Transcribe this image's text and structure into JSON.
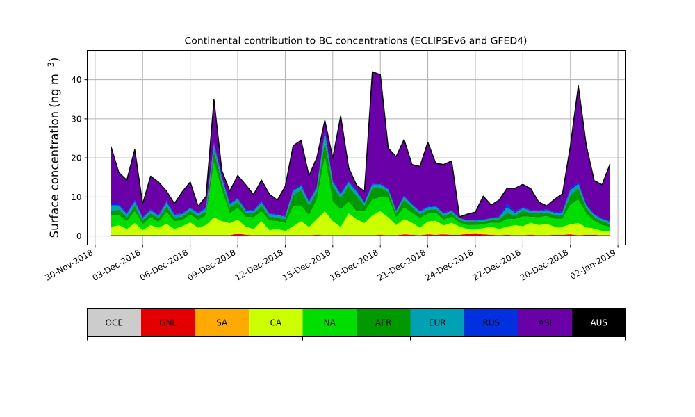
{
  "chart_data": {
    "type": "area",
    "title": "Continental contribution to BC concentrations (ECLIPSEv6 and GFED4)",
    "ylabel_main": "Surface concentration (ng m",
    "ylabel_exp": "−3",
    "ylabel_close": ")",
    "xlabel": "",
    "stacked": true,
    "grid": true,
    "x_range": [
      "2018-11-29T12:00",
      "2019-01-02T12:00"
    ],
    "ylim": [
      -2.3,
      47.5
    ],
    "y_ticks": [
      0,
      10,
      20,
      30,
      40
    ],
    "x_ticks": [
      "30-Nov-2018",
      "03-Dec-2018",
      "06-Dec-2018",
      "09-Dec-2018",
      "12-Dec-2018",
      "15-Dec-2018",
      "18-Dec-2018",
      "21-Dec-2018",
      "24-Dec-2018",
      "27-Dec-2018",
      "30-Dec-2018",
      "02-Jan-2019"
    ],
    "x_tick_dates": [
      "2018-11-30",
      "2018-12-03",
      "2018-12-06",
      "2018-12-09",
      "2018-12-12",
      "2018-12-15",
      "2018-12-18",
      "2018-12-21",
      "2018-12-24",
      "2018-12-27",
      "2018-12-30",
      "2019-01-02"
    ],
    "x": [
      "2018-12-01T00:00",
      "2018-12-01T12:00",
      "2018-12-02T00:00",
      "2018-12-02T12:00",
      "2018-12-03T00:00",
      "2018-12-03T12:00",
      "2018-12-04T00:00",
      "2018-12-04T12:00",
      "2018-12-05T00:00",
      "2018-12-05T12:00",
      "2018-12-06T00:00",
      "2018-12-06T12:00",
      "2018-12-07T00:00",
      "2018-12-07T12:00",
      "2018-12-08T00:00",
      "2018-12-08T12:00",
      "2018-12-09T00:00",
      "2018-12-09T12:00",
      "2018-12-10T00:00",
      "2018-12-10T12:00",
      "2018-12-11T00:00",
      "2018-12-11T12:00",
      "2018-12-12T00:00",
      "2018-12-12T12:00",
      "2018-12-13T00:00",
      "2018-12-13T12:00",
      "2018-12-14T00:00",
      "2018-12-14T12:00",
      "2018-12-15T00:00",
      "2018-12-15T12:00",
      "2018-12-16T00:00",
      "2018-12-16T12:00",
      "2018-12-17T00:00",
      "2018-12-17T12:00",
      "2018-12-18T00:00",
      "2018-12-18T12:00",
      "2018-12-19T00:00",
      "2018-12-19T12:00",
      "2018-12-20T00:00",
      "2018-12-20T12:00",
      "2018-12-21T00:00",
      "2018-12-21T12:00",
      "2018-12-22T00:00",
      "2018-12-22T12:00",
      "2018-12-23T00:00",
      "2018-12-23T12:00",
      "2018-12-24T00:00",
      "2018-12-24T12:00",
      "2018-12-25T00:00",
      "2018-12-25T12:00",
      "2018-12-26T00:00",
      "2018-12-26T12:00",
      "2018-12-27T00:00",
      "2018-12-27T12:00",
      "2018-12-28T00:00",
      "2018-12-28T12:00",
      "2018-12-29T00:00",
      "2018-12-29T12:00",
      "2018-12-30T00:00",
      "2018-12-30T12:00",
      "2018-12-31T00:00",
      "2018-12-31T12:00",
      "2019-01-01T00:00",
      "2019-01-01T12:00"
    ],
    "series": [
      {
        "name": "OCE",
        "color": "#cccccc",
        "values": [
          0.1,
          0.1,
          0.1,
          0.1,
          0.1,
          0.1,
          0.1,
          0.1,
          0.1,
          0.1,
          0.1,
          0.1,
          0.1,
          0.1,
          0.1,
          0.1,
          0.1,
          0.1,
          0.1,
          0.1,
          0.1,
          0.1,
          0.1,
          0.1,
          0.1,
          0.1,
          0.1,
          0.1,
          0.1,
          0.1,
          0.1,
          0.1,
          0.1,
          0.1,
          0.1,
          0.1,
          0.1,
          0.1,
          0.1,
          0.1,
          0.1,
          0.1,
          0.1,
          0.1,
          0.1,
          0.1,
          0.1,
          0.1,
          0.1,
          0.1,
          0.1,
          0.1,
          0.1,
          0.1,
          0.1,
          0.1,
          0.1,
          0.1,
          0.1,
          0.1,
          0.1,
          0.1,
          0.1,
          0.1
        ]
      },
      {
        "name": "GNL",
        "color": "#e50000",
        "values": [
          0.1,
          0.1,
          0.1,
          0.1,
          0.1,
          0.1,
          0.1,
          0.1,
          0.1,
          0.1,
          0.1,
          0.1,
          0.1,
          0.1,
          0.1,
          0.1,
          0.5,
          0.2,
          0.1,
          0.1,
          0.1,
          0.1,
          0.1,
          0.1,
          0.1,
          0.1,
          0.2,
          0.1,
          0.1,
          0.1,
          0.1,
          0.1,
          0.1,
          0.1,
          0.2,
          0.1,
          0.1,
          0.3,
          0.2,
          0.1,
          0.3,
          0.2,
          0.3,
          0.2,
          0.2,
          0.4,
          0.6,
          0.3,
          0.2,
          0.1,
          0.2,
          0.1,
          0.1,
          0.2,
          0.1,
          0.1,
          0.2,
          0.2,
          0.3,
          0.1,
          0.2,
          0.2,
          0.1,
          0.1
        ]
      },
      {
        "name": "SA",
        "color": "#ffaa00",
        "values": [
          0.1,
          0.1,
          0.1,
          0.1,
          0.1,
          0.1,
          0.1,
          0.1,
          0.1,
          0.1,
          0.1,
          0.1,
          0.1,
          0.1,
          0.1,
          0.1,
          0.1,
          0.1,
          0.1,
          0.1,
          0.1,
          0.1,
          0.1,
          0.1,
          0.1,
          0.1,
          0.1,
          0.1,
          0.1,
          0.1,
          0.1,
          0.1,
          0.1,
          0.1,
          0.1,
          0.1,
          0.1,
          0.1,
          0.1,
          0.1,
          0.1,
          0.1,
          0.1,
          0.1,
          0.1,
          0.1,
          0.1,
          0.1,
          0.1,
          0.1,
          0.1,
          0.1,
          0.1,
          0.1,
          0.1,
          0.1,
          0.1,
          0.1,
          0.1,
          0.1,
          0.1,
          0.1,
          0.1,
          0.1
        ]
      },
      {
        "name": "CA",
        "color": "#ccff00",
        "values": [
          2.0,
          2.5,
          1.5,
          3.0,
          1.2,
          2.5,
          1.8,
          2.8,
          1.5,
          2.2,
          3.2,
          1.8,
          2.5,
          4.5,
          3.5,
          3.0,
          3.5,
          2.0,
          1.5,
          3.5,
          1.2,
          1.5,
          1.0,
          2.2,
          3.5,
          2.0,
          4.0,
          6.0,
          3.5,
          2.0,
          5.5,
          4.0,
          3.0,
          5.0,
          6.0,
          4.5,
          2.5,
          3.8,
          3.0,
          1.8,
          3.2,
          3.5,
          2.2,
          3.0,
          2.0,
          1.2,
          1.0,
          1.5,
          2.0,
          1.5,
          2.0,
          2.5,
          2.2,
          3.0,
          2.5,
          2.8,
          2.0,
          2.0,
          2.5,
          3.0,
          1.8,
          1.5,
          1.0,
          1.0
        ]
      },
      {
        "name": "NA",
        "color": "#00dd00",
        "values": [
          3.0,
          2.5,
          2.0,
          3.0,
          1.5,
          2.0,
          1.5,
          3.0,
          2.0,
          1.5,
          2.0,
          2.0,
          2.5,
          14.0,
          8.0,
          2.5,
          3.0,
          2.5,
          3.0,
          2.5,
          2.5,
          2.0,
          2.0,
          5.0,
          4.0,
          3.0,
          5.0,
          14.0,
          5.0,
          4.5,
          3.0,
          2.0,
          3.0,
          4.0,
          3.5,
          5.0,
          2.0,
          3.0,
          2.5,
          2.5,
          2.0,
          2.0,
          1.5,
          1.5,
          1.0,
          1.0,
          1.0,
          1.0,
          1.0,
          1.5,
          2.0,
          1.5,
          2.5,
          1.5,
          2.0,
          2.0,
          2.0,
          2.0,
          5.0,
          6.0,
          3.5,
          2.0,
          1.5,
          1.0
        ]
      },
      {
        "name": "AFR",
        "color": "#009900",
        "values": [
          1.0,
          1.5,
          1.0,
          1.5,
          1.0,
          1.0,
          1.0,
          1.5,
          1.0,
          1.0,
          1.0,
          1.0,
          1.0,
          3.0,
          2.0,
          1.5,
          1.5,
          1.0,
          1.0,
          1.5,
          1.0,
          1.0,
          1.0,
          3.0,
          4.0,
          2.5,
          2.0,
          4.0,
          4.0,
          3.0,
          4.0,
          4.0,
          1.5,
          3.0,
          2.5,
          1.5,
          1.0,
          2.0,
          1.5,
          1.0,
          1.0,
          1.0,
          1.0,
          1.0,
          0.7,
          0.7,
          0.7,
          0.7,
          0.7,
          1.0,
          1.5,
          1.0,
          1.5,
          1.0,
          1.0,
          1.0,
          1.0,
          1.0,
          2.5,
          3.0,
          1.5,
          1.0,
          1.0,
          0.8
        ]
      },
      {
        "name": "EUR",
        "color": "#00a0b5",
        "values": [
          1.5,
          1.0,
          0.8,
          1.0,
          0.6,
          0.8,
          0.5,
          1.0,
          0.6,
          0.6,
          0.6,
          0.6,
          0.8,
          1.5,
          1.0,
          0.8,
          0.8,
          0.6,
          0.6,
          0.8,
          0.6,
          0.6,
          0.6,
          1.0,
          1.0,
          0.8,
          1.0,
          2.0,
          1.0,
          0.8,
          1.0,
          1.0,
          0.6,
          0.8,
          0.8,
          0.6,
          0.5,
          0.8,
          0.6,
          0.6,
          0.6,
          0.6,
          0.5,
          0.5,
          0.4,
          0.4,
          0.4,
          0.4,
          0.4,
          0.5,
          1.5,
          0.6,
          0.6,
          0.5,
          0.5,
          0.5,
          0.5,
          0.6,
          1.2,
          1.0,
          0.6,
          0.5,
          0.5,
          0.5
        ]
      },
      {
        "name": "RUS",
        "color": "#0030e0",
        "values": [
          0.5,
          0.4,
          0.3,
          0.4,
          0.2,
          0.3,
          0.2,
          0.4,
          0.2,
          0.2,
          0.2,
          0.2,
          0.3,
          0.5,
          0.4,
          0.3,
          0.3,
          0.2,
          0.2,
          0.3,
          0.2,
          0.2,
          0.2,
          0.3,
          0.4,
          0.3,
          0.3,
          0.6,
          0.3,
          0.3,
          0.3,
          0.3,
          0.2,
          0.3,
          0.3,
          0.2,
          0.2,
          0.3,
          0.2,
          0.2,
          0.2,
          0.2,
          0.2,
          0.2,
          0.1,
          0.1,
          0.1,
          0.1,
          0.1,
          0.2,
          0.8,
          0.3,
          0.2,
          0.2,
          0.2,
          0.2,
          0.2,
          0.2,
          0.5,
          0.5,
          0.3,
          0.2,
          0.2,
          0.2
        ]
      },
      {
        "name": "ASI",
        "color": "#6a00a8",
        "values": [
          14.5,
          7.9,
          8.3,
          12.8,
          3.3,
          8.3,
          8.4,
          2.4,
          2.6,
          5.4,
          6.4,
          1.6,
          2.6,
          11.0,
          1.4,
          3.0,
          5.6,
          6.3,
          3.9,
          5.3,
          4.8,
          3.5,
          7.5,
          11.2,
          11.2,
          6.4,
          7.3,
          2.6,
          5.7,
          19.7,
          3.3,
          1.3,
          2.7,
          28.5,
          27.7,
          10.3,
          13.7,
          14.2,
          10.0,
          11.3,
          16.4,
          10.8,
          12.3,
          12.5,
          0.2,
          1.5,
          2.0,
          5.9,
          3.2,
          4.1,
          3.9,
          5.9,
          5.8,
          5.4,
          2.1,
          0.8,
          3.2,
          4.5,
          10.8,
          24.5,
          15.0,
          8.5,
          8.5,
          14.5
        ]
      },
      {
        "name": "AUS",
        "color": "#000000",
        "values": [
          0.1,
          0.1,
          0.1,
          0.1,
          0.1,
          0.1,
          0.1,
          0.1,
          0.1,
          0.1,
          0.1,
          0.1,
          0.1,
          0.1,
          0.1,
          0.1,
          0.1,
          0.1,
          0.1,
          0.1,
          0.1,
          0.1,
          0.1,
          0.1,
          0.1,
          0.1,
          0.1,
          0.1,
          0.1,
          0.1,
          0.1,
          0.1,
          0.1,
          0.1,
          0.1,
          0.1,
          0.1,
          0.1,
          0.1,
          0.1,
          0.1,
          0.1,
          0.1,
          0.1,
          0.1,
          0.1,
          0.1,
          0.1,
          0.1,
          0.1,
          0.1,
          0.1,
          0.1,
          0.1,
          0.1,
          0.1,
          0.1,
          0.1,
          0.1,
          0.1,
          0.1,
          0.1,
          0.1,
          0.1
        ]
      }
    ],
    "legend": {
      "placement": "bottom colorbar",
      "labels": [
        "OCE",
        "GNL",
        "SA",
        "CA",
        "NA",
        "AFR",
        "EUR",
        "RUS",
        "ASI",
        "AUS"
      ],
      "label_colors": [
        "#000000",
        "#000000",
        "#000000",
        "#000000",
        "#000000",
        "#000000",
        "#000000",
        "#000000",
        "#000000",
        "#ffffff"
      ]
    },
    "colors": {
      "grid": "#b0b0b0",
      "total_outline": "#000000"
    }
  }
}
